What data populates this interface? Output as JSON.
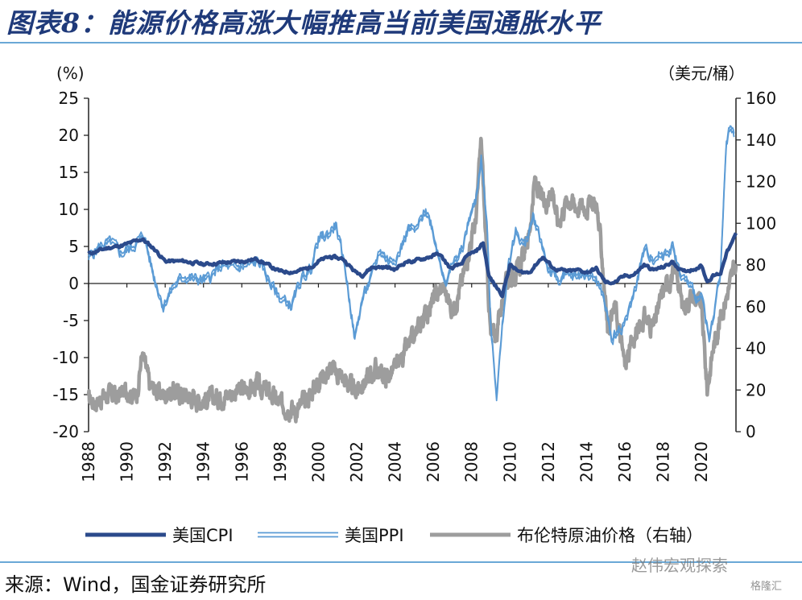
{
  "title": "图表8：能源价格高涨大幅推高当前美国通胀水平",
  "source": "来源：Wind，国金证券研究所",
  "watermark": "赵伟宏观探索",
  "watermark_sub": "格隆汇",
  "colors": {
    "title": "#1f3a7a",
    "cpi": "#2b4a8b",
    "ppi": "#5b9bd5",
    "brent": "#9d9d9d",
    "rule": "#6aa8d6"
  },
  "chart_data": {
    "type": "line",
    "left_unit": "(%)",
    "right_unit": "（美元/桶）",
    "xlim": [
      1988,
      2021.8
    ],
    "ylim_left": [
      -20,
      25
    ],
    "ylim_right": [
      0,
      160
    ],
    "yticks_left": [
      "25",
      "20",
      "15",
      "10",
      "5",
      "0",
      "-5",
      "-10",
      "-15",
      "-20"
    ],
    "yticks_right": [
      "160",
      "140",
      "120",
      "100",
      "80",
      "60",
      "40",
      "20",
      "0"
    ],
    "xticks": [
      "1988",
      "1990",
      "1992",
      "1994",
      "1996",
      "1998",
      "2000",
      "2002",
      "2004",
      "2006",
      "2008",
      "2010",
      "2012",
      "2014",
      "2016",
      "2018",
      "2020"
    ],
    "legend_position": "bottom",
    "series": [
      {
        "name": "美国CPI",
        "axis": "left",
        "style": "line",
        "x": [
          1988.0,
          1989.0,
          1989.5,
          1990.0,
          1990.8,
          1991.5,
          1992.0,
          1993.0,
          1994.0,
          1995.0,
          1996.0,
          1996.8,
          1997.5,
          1998.0,
          1998.8,
          1999.5,
          2000.0,
          2000.6,
          2001.3,
          2001.9,
          2002.3,
          2002.8,
          2003.5,
          2004.0,
          2004.6,
          2005.0,
          2005.8,
          2006.3,
          2006.9,
          2007.4,
          2007.9,
          2008.2,
          2008.6,
          2008.9,
          2009.2,
          2009.6,
          2010.0,
          2010.5,
          2011.0,
          2011.7,
          2012.3,
          2013.0,
          2013.6,
          2014.0,
          2014.5,
          2015.0,
          2015.5,
          2016.0,
          2016.5,
          2017.0,
          2017.5,
          2018.0,
          2018.5,
          2019.0,
          2019.5,
          2020.0,
          2020.3,
          2020.6,
          2021.0,
          2021.3,
          2021.6,
          2021.8
        ],
        "values": [
          4.0,
          4.8,
          5.0,
          5.3,
          6.0,
          4.5,
          3.0,
          3.0,
          2.6,
          2.8,
          3.0,
          3.3,
          2.3,
          1.6,
          1.6,
          2.1,
          3.0,
          3.6,
          3.3,
          1.6,
          1.2,
          2.2,
          2.2,
          1.9,
          3.0,
          3.0,
          3.6,
          4.0,
          2.0,
          2.5,
          4.0,
          4.2,
          5.5,
          1.0,
          -0.2,
          -1.5,
          2.5,
          1.5,
          1.5,
          3.6,
          2.0,
          1.6,
          1.8,
          1.5,
          2.0,
          0.1,
          0.2,
          1.0,
          1.2,
          2.5,
          1.8,
          2.2,
          2.9,
          1.6,
          1.9,
          2.4,
          0.3,
          1.0,
          1.4,
          4.2,
          5.4,
          6.8
        ]
      },
      {
        "name": "美国PPI",
        "axis": "left",
        "style": "double-line",
        "x": [
          1988.0,
          1988.6,
          1989.2,
          1989.7,
          1990.3,
          1990.9,
          1991.4,
          1991.9,
          1992.4,
          1993.0,
          1993.6,
          1994.2,
          1995.0,
          1995.6,
          1996.3,
          1996.9,
          1997.5,
          1998.0,
          1998.6,
          1999.1,
          1999.6,
          2000.0,
          2000.5,
          2000.9,
          2001.4,
          2001.9,
          2002.3,
          2002.8,
          2003.2,
          2003.7,
          2004.2,
          2004.7,
          2005.1,
          2005.6,
          2005.9,
          2006.3,
          2006.7,
          2007.0,
          2007.5,
          2007.9,
          2008.2,
          2008.5,
          2008.8,
          2009.0,
          2009.3,
          2009.6,
          2009.9,
          2010.3,
          2010.8,
          2011.2,
          2011.6,
          2012.0,
          2012.5,
          2013.0,
          2013.5,
          2014.0,
          2014.5,
          2014.9,
          2015.3,
          2015.8,
          2016.2,
          2016.7,
          2017.0,
          2017.5,
          2018.0,
          2018.5,
          2018.9,
          2019.3,
          2019.8,
          2020.1,
          2020.4,
          2020.7,
          2021.0,
          2021.3,
          2021.5,
          2021.7
        ],
        "values": [
          3.5,
          5.0,
          5.5,
          4.0,
          5.0,
          6.5,
          1.0,
          -3.0,
          -0.5,
          1.0,
          0.5,
          0.5,
          2.5,
          2.0,
          2.5,
          3.0,
          0.0,
          -2.0,
          -3.0,
          0.5,
          2.0,
          6.0,
          6.5,
          8.0,
          2.0,
          -7.5,
          -2.0,
          1.0,
          4.5,
          3.0,
          4.0,
          7.5,
          7.0,
          10.0,
          8.0,
          3.5,
          0.0,
          2.5,
          4.5,
          9.0,
          11.0,
          17.0,
          8.0,
          -6.0,
          -15.0,
          -6.0,
          2.5,
          7.0,
          5.0,
          9.0,
          6.0,
          2.0,
          0.5,
          1.0,
          1.0,
          1.5,
          0.5,
          -2.0,
          -7.5,
          -6.0,
          -4.0,
          1.0,
          4.5,
          3.5,
          4.0,
          5.0,
          1.0,
          0.0,
          -2.0,
          -2.5,
          -8.0,
          -3.0,
          2.0,
          19.0,
          21.0,
          20.0
        ]
      },
      {
        "name": "布伦特原油价格（右轴）",
        "axis": "right",
        "style": "thick-noisy",
        "x": [
          1988.0,
          1988.5,
          1989.0,
          1989.5,
          1990.0,
          1990.5,
          1990.8,
          1991.2,
          1991.8,
          1992.5,
          1993.0,
          1993.8,
          1994.5,
          1995.0,
          1996.0,
          1996.8,
          1997.5,
          1998.0,
          1998.5,
          1998.9,
          1999.5,
          2000.0,
          2000.6,
          2001.2,
          2001.9,
          2002.5,
          2003.0,
          2003.5,
          2004.0,
          2004.5,
          2005.0,
          2005.5,
          2006.0,
          2006.5,
          2007.0,
          2007.5,
          2007.9,
          2008.2,
          2008.5,
          2008.8,
          2009.0,
          2009.3,
          2009.7,
          2010.0,
          2010.5,
          2011.0,
          2011.3,
          2011.8,
          2012.2,
          2012.5,
          2013.0,
          2013.5,
          2014.0,
          2014.5,
          2014.8,
          2015.1,
          2015.5,
          2016.0,
          2016.5,
          2017.0,
          2017.5,
          2018.0,
          2018.7,
          2019.0,
          2019.5,
          2020.0,
          2020.3,
          2020.6,
          2021.0,
          2021.3,
          2021.6,
          2021.8
        ],
        "values": [
          15,
          15,
          18,
          17,
          20,
          17,
          38,
          22,
          18,
          19,
          18,
          15,
          16,
          17,
          20,
          22,
          18,
          13,
          12,
          10,
          17,
          25,
          30,
          27,
          19,
          25,
          30,
          26,
          30,
          38,
          45,
          55,
          63,
          70,
          58,
          72,
          90,
          100,
          140,
          80,
          45,
          48,
          68,
          75,
          78,
          95,
          120,
          108,
          118,
          100,
          112,
          108,
          108,
          110,
          85,
          50,
          60,
          32,
          45,
          55,
          50,
          68,
          78,
          60,
          65,
          60,
          20,
          40,
          55,
          65,
          75,
          80
        ]
      }
    ]
  }
}
